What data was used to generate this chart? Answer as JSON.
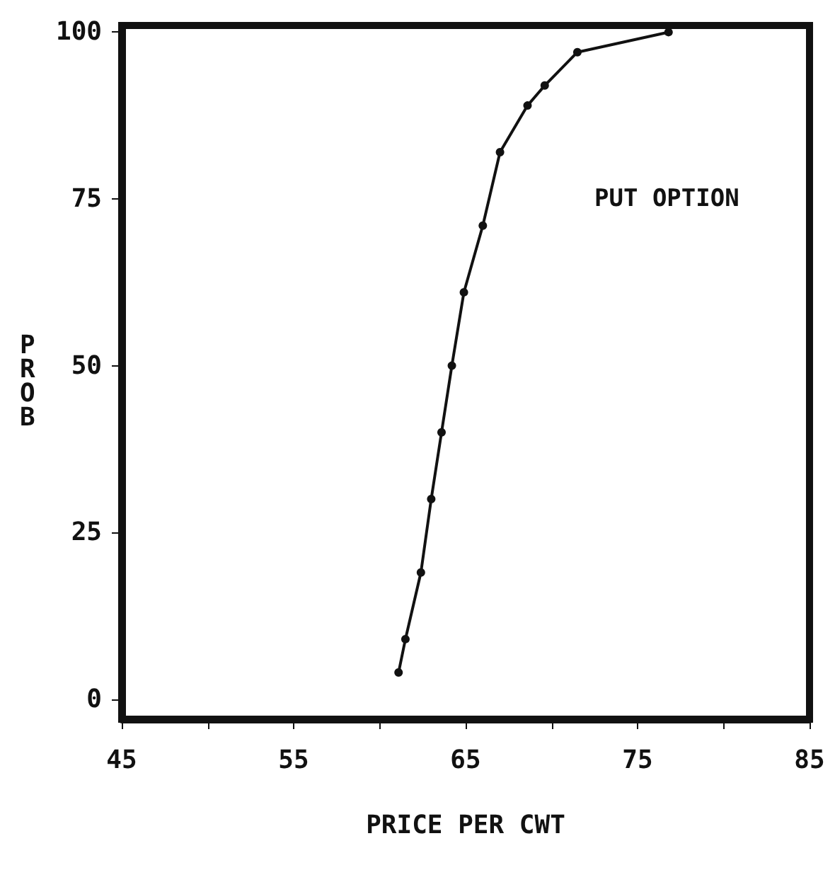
{
  "chart_data": {
    "type": "line",
    "xlabel": "PRICE PER CWT",
    "ylabel": "PROB",
    "annotations": [
      "PUT OPTION"
    ],
    "x": [
      61.1,
      61.5,
      62.4,
      63.0,
      63.6,
      64.2,
      64.9,
      66.0,
      67.0,
      68.6,
      69.6,
      71.5,
      76.8
    ],
    "series": [
      {
        "color": "#111111",
        "values": [
          4,
          9,
          19,
          30,
          40,
          50,
          61,
          71,
          82,
          89,
          92,
          97,
          100
        ]
      }
    ],
    "xlim": [
      45,
      85
    ],
    "xticks": [
      45,
      {
        "value": 50,
        "label": null
      },
      55,
      {
        "value": 60,
        "label": null
      },
      65,
      {
        "value": 70,
        "label": null
      },
      75,
      {
        "value": 80,
        "label": null
      },
      85
    ],
    "ylim": [
      -3,
      101
    ],
    "yticks": [
      0,
      25,
      50,
      75,
      100
    ],
    "marker": "circle",
    "line_style": "solid"
  }
}
